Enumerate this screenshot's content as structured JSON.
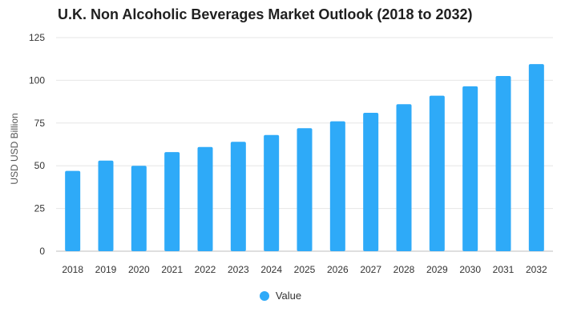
{
  "chart_data": {
    "type": "bar",
    "title": "U.K. Non Alcoholic Beverages Market Outlook (2018 to 2032)",
    "xlabel": "",
    "ylabel": "USD USD Billion",
    "ylim": [
      0,
      125
    ],
    "yticks": [
      0,
      25,
      50,
      75,
      100,
      125
    ],
    "grid": true,
    "legend_position": "bottom",
    "bar_color": "#2eaaf8",
    "categories": [
      "2018",
      "2019",
      "2020",
      "2021",
      "2022",
      "2023",
      "2024",
      "2025",
      "2026",
      "2027",
      "2028",
      "2029",
      "2030",
      "2031",
      "2032"
    ],
    "series": [
      {
        "name": "Value",
        "values": [
          47,
          53,
          50,
          58,
          61,
          64,
          68,
          72,
          76,
          81,
          86,
          91,
          96.5,
          102.5,
          109.5
        ]
      }
    ]
  }
}
